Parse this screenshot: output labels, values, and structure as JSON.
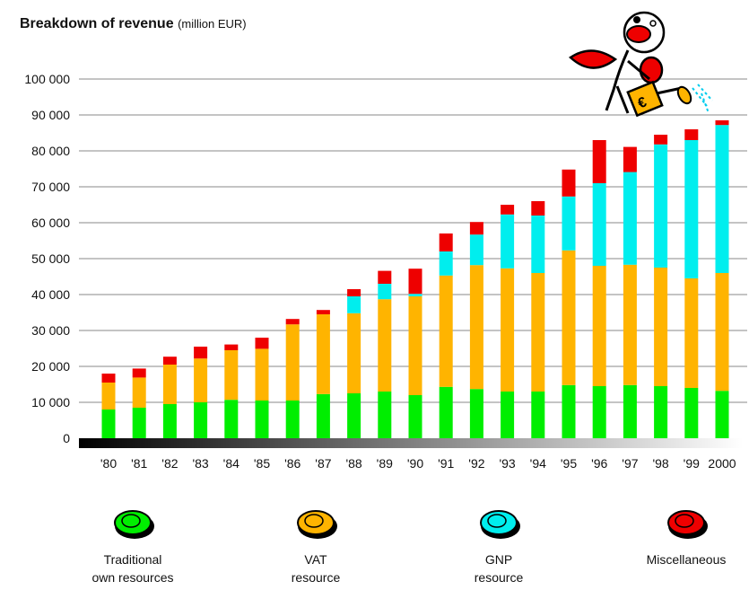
{
  "chart_data": {
    "type": "bar",
    "stacked": true,
    "title": "Breakdown of revenue",
    "unit": "(million EUR)",
    "xlabel": "",
    "ylabel": "",
    "ylim": [
      0,
      100000
    ],
    "y_ticks": [
      "0",
      "10 000",
      "20 000",
      "30 000",
      "40 000",
      "50 000",
      "60 000",
      "70 000",
      "80 000",
      "90 000",
      "100 000"
    ],
    "y_tick_values": [
      0,
      10000,
      20000,
      30000,
      40000,
      50000,
      60000,
      70000,
      80000,
      90000,
      100000
    ],
    "grid": true,
    "legend_position": "bottom",
    "categories": [
      "'80",
      "'81",
      "'82",
      "'83",
      "'84",
      "'85",
      "'86",
      "'87",
      "'88",
      "'89",
      "'90",
      "'91",
      "'92",
      "'93",
      "'94",
      "'95",
      "'96",
      "'97",
      "'98",
      "'99",
      "2000"
    ],
    "series": [
      {
        "name": "Traditional own resources",
        "color": "#00ee00",
        "values": [
          8000,
          8500,
          9500,
          10000,
          10700,
          10500,
          10500,
          12300,
          12500,
          13000,
          12000,
          14300,
          13700,
          13000,
          13000,
          14800,
          14500,
          14800,
          14500,
          14000,
          13200
        ]
      },
      {
        "name": "VAT resource",
        "color": "#ffb400",
        "values": [
          7500,
          8400,
          11000,
          12200,
          13800,
          14400,
          21200,
          22200,
          22300,
          25700,
          27500,
          31000,
          34500,
          34300,
          33000,
          37500,
          33500,
          33500,
          33000,
          30500,
          32800
        ]
      },
      {
        "name": "GNP resource",
        "color": "#00eeee",
        "values": [
          0,
          0,
          0,
          0,
          0,
          0,
          0,
          0,
          4700,
          4300,
          700,
          6700,
          8500,
          15000,
          16000,
          15000,
          23000,
          25800,
          34300,
          38500,
          41200
        ]
      },
      {
        "name": "Miscellaneous",
        "color": "#ee0000",
        "values": [
          2500,
          2500,
          2200,
          3300,
          1600,
          3100,
          1500,
          1200,
          2000,
          3600,
          7000,
          5000,
          3500,
          2700,
          4000,
          7500,
          12000,
          7000,
          2700,
          3000,
          1300
        ]
      }
    ],
    "legend": [
      {
        "line1": "Traditional",
        "line2": "own resources",
        "color": "#00ee00"
      },
      {
        "line1": "VAT",
        "line2": "resource",
        "color": "#ffb400"
      },
      {
        "line1": "GNP",
        "line2": "resource",
        "color": "#00eeee"
      },
      {
        "line1": "Miscellaneous",
        "line2": "",
        "color": "#ee0000"
      }
    ]
  }
}
